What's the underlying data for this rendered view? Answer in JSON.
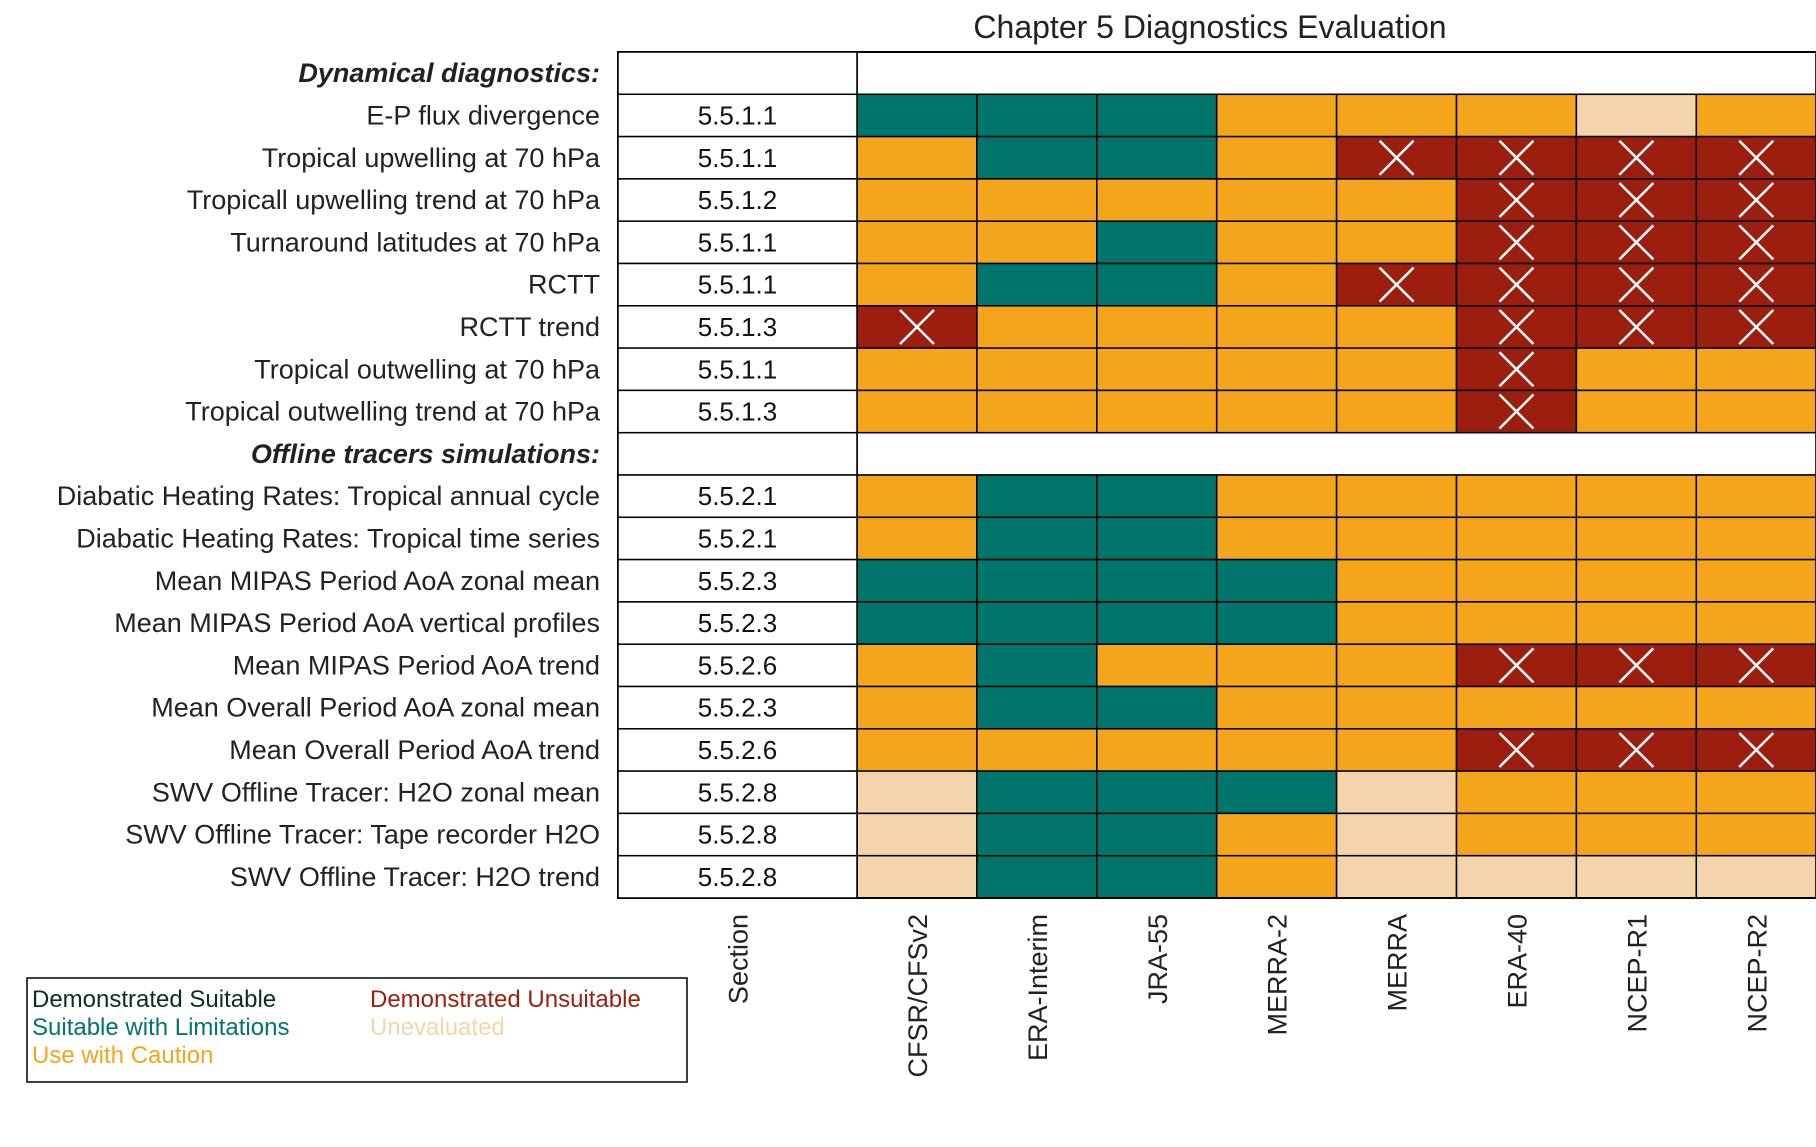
{
  "chart_data": {
    "type": "table",
    "title": "Chapter 5 Diagnostics Evaluation",
    "section_header": "Section",
    "columns": [
      "CFSR/CFSv2",
      "ERA-Interim",
      "JRA-55",
      "MERRA-2",
      "MERRA",
      "ERA-40",
      "NCEP-R1",
      "NCEP-R2"
    ],
    "status_colors": {
      "DS": "#0b2e24",
      "SL": "#00756b",
      "UC": "#f5a51b",
      "DU": "#9c1e0e",
      "UE": "#f4d5ab"
    },
    "status_marked_x": [
      "DU"
    ],
    "legend": [
      {
        "code": "DS",
        "label": "Demonstrated Suitable"
      },
      {
        "code": "SL",
        "label": "Suitable with Limitations"
      },
      {
        "code": "UC",
        "label": "Use with Caution"
      },
      {
        "code": "DU",
        "label": "Demonstrated Unsuitable"
      },
      {
        "code": "UE",
        "label": "Unevaluated"
      }
    ],
    "rows": [
      {
        "label": "Dynamical diagnostics:",
        "group": true
      },
      {
        "label": "E-P flux divergence",
        "section": "5.5.1.1",
        "values": [
          "SL",
          "SL",
          "SL",
          "UC",
          "UC",
          "UC",
          "UE",
          "UC"
        ]
      },
      {
        "label": "Tropical upwelling at 70 hPa",
        "section": "5.5.1.1",
        "values": [
          "UC",
          "SL",
          "SL",
          "UC",
          "DU",
          "DU",
          "DU",
          "DU"
        ]
      },
      {
        "label": "Tropicall upwelling trend at 70 hPa",
        "section": "5.5.1.2",
        "values": [
          "UC",
          "UC",
          "UC",
          "UC",
          "UC",
          "DU",
          "DU",
          "DU"
        ]
      },
      {
        "label": "Turnaround latitudes at 70 hPa",
        "section": "5.5.1.1",
        "values": [
          "UC",
          "UC",
          "SL",
          "UC",
          "UC",
          "DU",
          "DU",
          "DU"
        ]
      },
      {
        "label": "RCTT",
        "section": "5.5.1.1",
        "values": [
          "UC",
          "SL",
          "SL",
          "UC",
          "DU",
          "DU",
          "DU",
          "DU"
        ]
      },
      {
        "label": "RCTT trend",
        "section": "5.5.1.3",
        "values": [
          "DU",
          "UC",
          "UC",
          "UC",
          "UC",
          "DU",
          "DU",
          "DU"
        ]
      },
      {
        "label": "Tropical outwelling at 70 hPa",
        "section": "5.5.1.1",
        "values": [
          "UC",
          "UC",
          "UC",
          "UC",
          "UC",
          "DU",
          "UC",
          "UC"
        ]
      },
      {
        "label": "Tropical outwelling trend at 70 hPa",
        "section": "5.5.1.3",
        "values": [
          "UC",
          "UC",
          "UC",
          "UC",
          "UC",
          "DU",
          "UC",
          "UC"
        ]
      },
      {
        "label": "Offline tracers simulations:",
        "group": true
      },
      {
        "label": "Diabatic Heating Rates: Tropical annual cycle",
        "section": "5.5.2.1",
        "values": [
          "UC",
          "SL",
          "SL",
          "UC",
          "UC",
          "UC",
          "UC",
          "UC"
        ]
      },
      {
        "label": "Diabatic Heating Rates: Tropical time series",
        "section": "5.5.2.1",
        "values": [
          "UC",
          "SL",
          "SL",
          "UC",
          "UC",
          "UC",
          "UC",
          "UC"
        ]
      },
      {
        "label": "Mean MIPAS Period AoA zonal mean",
        "section": "5.5.2.3",
        "values": [
          "SL",
          "SL",
          "SL",
          "SL",
          "UC",
          "UC",
          "UC",
          "UC"
        ]
      },
      {
        "label": "Mean MIPAS Period AoA vertical profiles",
        "section": "5.5.2.3",
        "values": [
          "SL",
          "SL",
          "SL",
          "SL",
          "UC",
          "UC",
          "UC",
          "UC"
        ]
      },
      {
        "label": "Mean MIPAS Period AoA trend",
        "section": "5.5.2.6",
        "values": [
          "UC",
          "SL",
          "UC",
          "UC",
          "UC",
          "DU",
          "DU",
          "DU"
        ]
      },
      {
        "label": "Mean Overall Period AoA zonal mean",
        "section": "5.5.2.3",
        "values": [
          "UC",
          "SL",
          "SL",
          "UC",
          "UC",
          "UC",
          "UC",
          "UC"
        ]
      },
      {
        "label": "Mean Overall Period AoA trend",
        "section": "5.5.2.6",
        "values": [
          "UC",
          "UC",
          "UC",
          "UC",
          "UC",
          "DU",
          "DU",
          "DU"
        ]
      },
      {
        "label": "SWV Offline Tracer: H2O zonal mean",
        "section": "5.5.2.8",
        "values": [
          "UE",
          "SL",
          "SL",
          "SL",
          "UE",
          "UC",
          "UC",
          "UC"
        ]
      },
      {
        "label": "SWV Offline Tracer: Tape recorder H2O",
        "section": "5.5.2.8",
        "values": [
          "UE",
          "SL",
          "SL",
          "UC",
          "UE",
          "UC",
          "UC",
          "UC"
        ]
      },
      {
        "label": "SWV Offline Tracer: H2O trend",
        "section": "5.5.2.8",
        "values": [
          "UE",
          "SL",
          "SL",
          "UC",
          "UE",
          "UE",
          "UE",
          "UE"
        ]
      }
    ]
  }
}
